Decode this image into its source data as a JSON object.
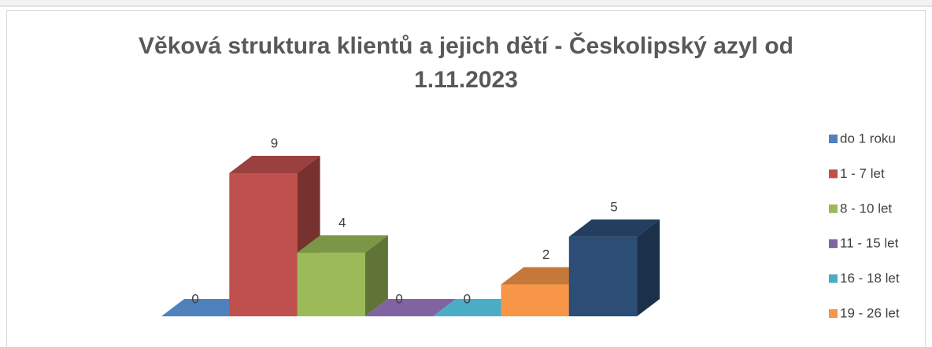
{
  "chart_data": {
    "type": "bar3d",
    "title": [
      "Věková struktura klientů a jejich dětí - Českolipský azyl od",
      "1.11.2023"
    ],
    "series": [
      {
        "name": "do 1 roku",
        "color": "#4f81bd",
        "values": [
          0
        ]
      },
      {
        "name": "1 - 7 let",
        "color": "#c0504d",
        "values": [
          9
        ]
      },
      {
        "name": "8 - 10 let",
        "color": "#9bbb59",
        "values": [
          4
        ]
      },
      {
        "name": "11 - 15 let",
        "color": "#8064a2",
        "values": [
          0
        ]
      },
      {
        "name": "16 - 18 let",
        "color": "#4bacc6",
        "values": [
          0
        ]
      },
      {
        "name": "19 - 26 let",
        "color": "#f79646",
        "values": [
          2
        ]
      },
      {
        "name": null,
        "color": "#2c4d75",
        "values": [
          5
        ]
      }
    ],
    "legend": "right"
  }
}
